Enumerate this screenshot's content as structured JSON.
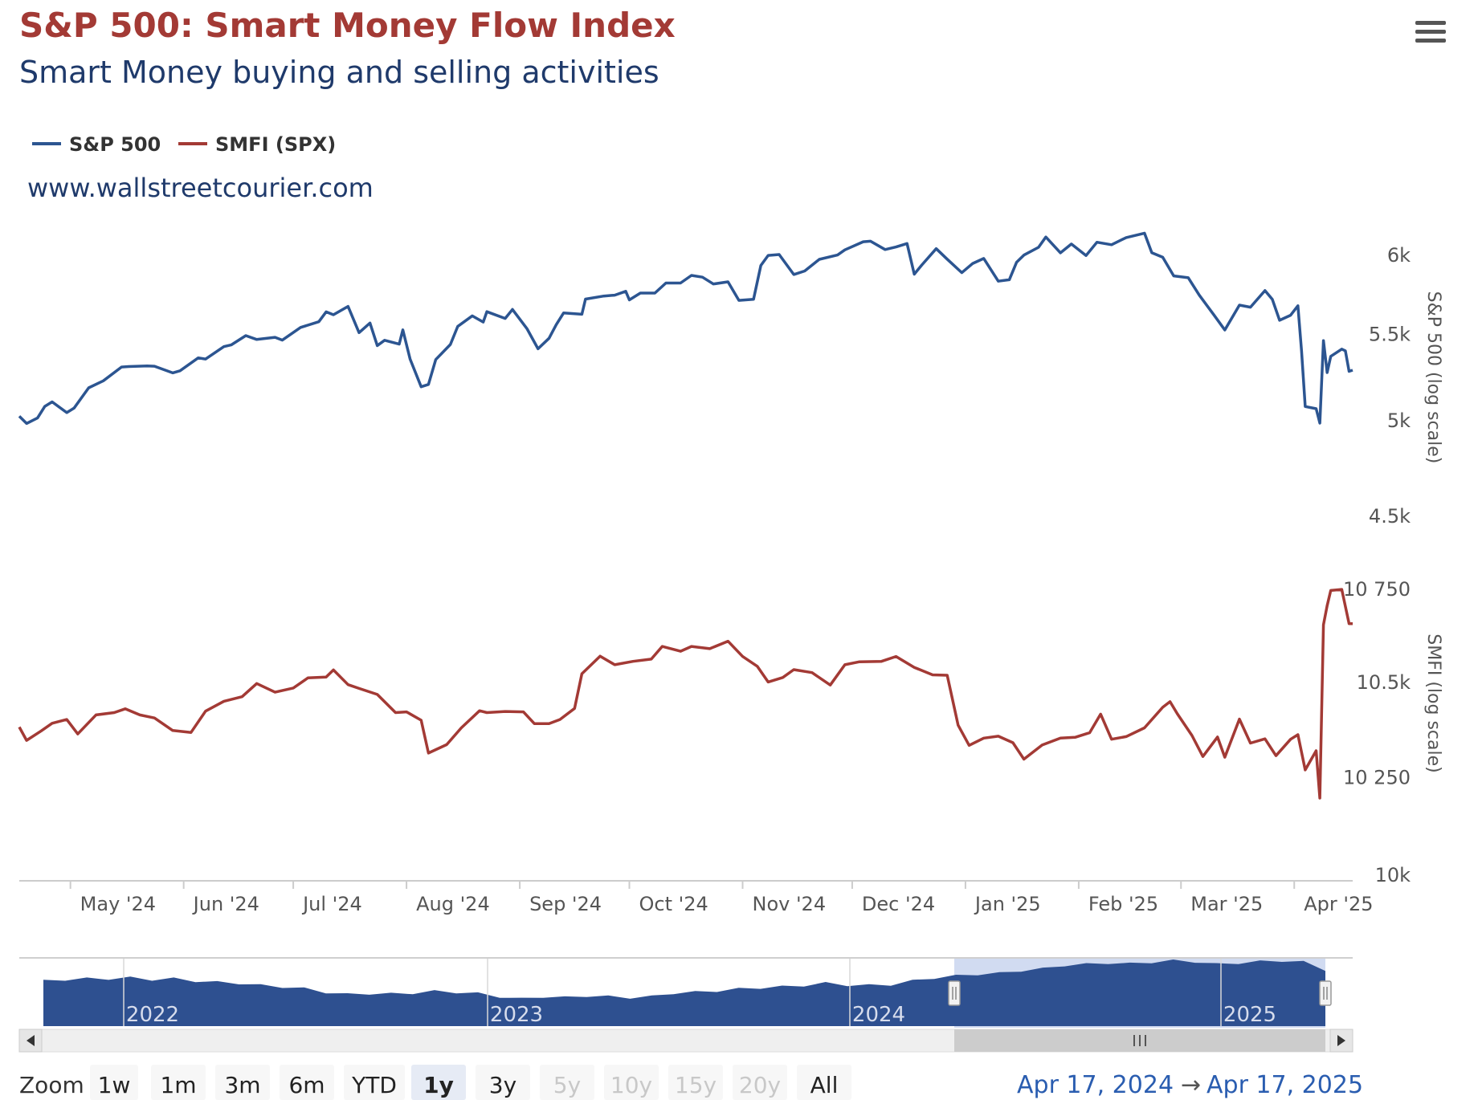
{
  "chart_data": {
    "type": "line",
    "title": "S&P 500: Smart Money Flow Index",
    "subtitle": "Smart Money buying and selling activities",
    "watermark": "www.wallstreetcourier.com",
    "legend_position": "top-left",
    "grid": false,
    "x_range": [
      "2024-04-17",
      "2025-04-17"
    ],
    "x_ticks": [
      "May '24",
      "Jun '24",
      "Jul '24",
      "Aug '24",
      "Sep '24",
      "Oct '24",
      "Nov '24",
      "Dec '24",
      "Jan '25",
      "Feb '25",
      "Mar '25",
      "Apr '25"
    ],
    "colors": {
      "sp500": "#2c5591",
      "smfi": "#a33a35",
      "navigator": "#2e5090",
      "title": "#a33a35",
      "subtitle": "#1f3a6b"
    },
    "axes": [
      {
        "id": "sp500",
        "title": "S&P 500 (log scale)",
        "scale": "log",
        "range": [
          4420,
          6190
        ],
        "ticks": [
          "6k",
          "5.5k",
          "5k",
          "4.5k"
        ],
        "tick_values": [
          6000,
          5500,
          5000,
          4500
        ]
      },
      {
        "id": "smfi",
        "title": "SMFI (log scale)",
        "scale": "log",
        "range": [
          9990,
          10770
        ],
        "ticks": [
          "10 750",
          "10.5k",
          "10 250",
          "10k"
        ],
        "tick_values": [
          10750,
          10500,
          10250,
          10000
        ]
      }
    ],
    "series": [
      {
        "name": "S&P 500",
        "axis": "sp500",
        "points": [
          [
            "2024-04-17",
            5020
          ],
          [
            "2024-04-19",
            4980
          ],
          [
            "2024-04-22",
            5010
          ],
          [
            "2024-04-24",
            5075
          ],
          [
            "2024-04-26",
            5100
          ],
          [
            "2024-04-30",
            5040
          ],
          [
            "2024-05-02",
            5065
          ],
          [
            "2024-05-06",
            5180
          ],
          [
            "2024-05-10",
            5220
          ],
          [
            "2024-05-15",
            5300
          ],
          [
            "2024-05-17",
            5303
          ],
          [
            "2024-05-22",
            5307
          ],
          [
            "2024-05-24",
            5305
          ],
          [
            "2024-05-29",
            5266
          ],
          [
            "2024-05-31",
            5278
          ],
          [
            "2024-06-05",
            5354
          ],
          [
            "2024-06-07",
            5347
          ],
          [
            "2024-06-12",
            5421
          ],
          [
            "2024-06-14",
            5431
          ],
          [
            "2024-06-18",
            5487
          ],
          [
            "2024-06-21",
            5464
          ],
          [
            "2024-06-26",
            5477
          ],
          [
            "2024-06-28",
            5460
          ],
          [
            "2024-07-03",
            5537
          ],
          [
            "2024-07-08",
            5572
          ],
          [
            "2024-07-10",
            5633
          ],
          [
            "2024-07-12",
            5615
          ],
          [
            "2024-07-16",
            5667
          ],
          [
            "2024-07-19",
            5505
          ],
          [
            "2024-07-22",
            5564
          ],
          [
            "2024-07-24",
            5427
          ],
          [
            "2024-07-26",
            5459
          ],
          [
            "2024-07-30",
            5436
          ],
          [
            "2024-07-31",
            5522
          ],
          [
            "2024-08-02",
            5346
          ],
          [
            "2024-08-05",
            5186
          ],
          [
            "2024-08-07",
            5199
          ],
          [
            "2024-08-09",
            5344
          ],
          [
            "2024-08-13",
            5434
          ],
          [
            "2024-08-15",
            5543
          ],
          [
            "2024-08-19",
            5608
          ],
          [
            "2024-08-22",
            5570
          ],
          [
            "2024-08-23",
            5634
          ],
          [
            "2024-08-28",
            5592
          ],
          [
            "2024-08-30",
            5648
          ],
          [
            "2024-09-03",
            5528
          ],
          [
            "2024-09-06",
            5408
          ],
          [
            "2024-09-09",
            5471
          ],
          [
            "2024-09-11",
            5554
          ],
          [
            "2024-09-13",
            5626
          ],
          [
            "2024-09-18",
            5618
          ],
          [
            "2024-09-19",
            5713
          ],
          [
            "2024-09-24",
            5732
          ],
          [
            "2024-09-27",
            5738
          ],
          [
            "2024-09-30",
            5762
          ],
          [
            "2024-10-01",
            5708
          ],
          [
            "2024-10-04",
            5751
          ],
          [
            "2024-10-08",
            5751
          ],
          [
            "2024-10-11",
            5815
          ],
          [
            "2024-10-15",
            5815
          ],
          [
            "2024-10-18",
            5864
          ],
          [
            "2024-10-21",
            5853
          ],
          [
            "2024-10-24",
            5809
          ],
          [
            "2024-10-28",
            5823
          ],
          [
            "2024-10-31",
            5705
          ],
          [
            "2024-11-04",
            5712
          ],
          [
            "2024-11-06",
            5929
          ],
          [
            "2024-11-08",
            5995
          ],
          [
            "2024-11-11",
            6001
          ],
          [
            "2024-11-15",
            5870
          ],
          [
            "2024-11-18",
            5893
          ],
          [
            "2024-11-22",
            5969
          ],
          [
            "2024-11-27",
            5998
          ],
          [
            "2024-11-29",
            6032
          ],
          [
            "2024-12-04",
            6086
          ],
          [
            "2024-12-06",
            6090
          ],
          [
            "2024-12-10",
            6034
          ],
          [
            "2024-12-13",
            6051
          ],
          [
            "2024-12-16",
            6074
          ],
          [
            "2024-12-18",
            5872
          ],
          [
            "2024-12-20",
            5930
          ],
          [
            "2024-12-24",
            6040
          ],
          [
            "2024-12-27",
            5970
          ],
          [
            "2024-12-31",
            5882
          ],
          [
            "2025-01-03",
            5942
          ],
          [
            "2025-01-06",
            5975
          ],
          [
            "2025-01-10",
            5827
          ],
          [
            "2025-01-13",
            5836
          ],
          [
            "2025-01-15",
            5950
          ],
          [
            "2025-01-17",
            5997
          ],
          [
            "2025-01-21",
            6049
          ],
          [
            "2025-01-23",
            6118
          ],
          [
            "2025-01-27",
            6012
          ],
          [
            "2025-01-30",
            6071
          ],
          [
            "2025-02-03",
            5994
          ],
          [
            "2025-02-06",
            6083
          ],
          [
            "2025-02-10",
            6066
          ],
          [
            "2025-02-14",
            6114
          ],
          [
            "2025-02-19",
            6144
          ],
          [
            "2025-02-21",
            6013
          ],
          [
            "2025-02-24",
            5983
          ],
          [
            "2025-02-27",
            5861
          ],
          [
            "2025-03-03",
            5849
          ],
          [
            "2025-03-06",
            5738
          ],
          [
            "2025-03-10",
            5614
          ],
          [
            "2025-03-13",
            5521
          ],
          [
            "2025-03-17",
            5675
          ],
          [
            "2025-03-20",
            5662
          ],
          [
            "2025-03-24",
            5767
          ],
          [
            "2025-03-26",
            5712
          ],
          [
            "2025-03-28",
            5581
          ],
          [
            "2025-03-31",
            5612
          ],
          [
            "2025-04-02",
            5671
          ],
          [
            "2025-04-03",
            5397
          ],
          [
            "2025-04-04",
            5074
          ],
          [
            "2025-04-07",
            5062
          ],
          [
            "2025-04-08",
            4982
          ],
          [
            "2025-04-09",
            5457
          ],
          [
            "2025-04-10",
            5268
          ],
          [
            "2025-04-11",
            5363
          ],
          [
            "2025-04-14",
            5406
          ],
          [
            "2025-04-15",
            5396
          ],
          [
            "2025-04-16",
            5275
          ],
          [
            "2025-04-17",
            5282
          ]
        ]
      },
      {
        "name": "SMFI (SPX)",
        "axis": "smfi",
        "points": [
          [
            "2024-04-17",
            10380
          ],
          [
            "2024-04-19",
            10345
          ],
          [
            "2024-04-23",
            10370
          ],
          [
            "2024-04-26",
            10390
          ],
          [
            "2024-04-30",
            10400
          ],
          [
            "2024-05-03",
            10362
          ],
          [
            "2024-05-08",
            10412
          ],
          [
            "2024-05-13",
            10418
          ],
          [
            "2024-05-16",
            10428
          ],
          [
            "2024-05-20",
            10412
          ],
          [
            "2024-05-24",
            10404
          ],
          [
            "2024-05-29",
            10371
          ],
          [
            "2024-06-03",
            10366
          ],
          [
            "2024-06-07",
            10422
          ],
          [
            "2024-06-12",
            10448
          ],
          [
            "2024-06-17",
            10460
          ],
          [
            "2024-06-21",
            10495
          ],
          [
            "2024-06-26",
            10472
          ],
          [
            "2024-07-01",
            10483
          ],
          [
            "2024-07-05",
            10510
          ],
          [
            "2024-07-10",
            10512
          ],
          [
            "2024-07-12",
            10531
          ],
          [
            "2024-07-16",
            10492
          ],
          [
            "2024-07-19",
            10482
          ],
          [
            "2024-07-24",
            10466
          ],
          [
            "2024-07-29",
            10418
          ],
          [
            "2024-08-01",
            10420
          ],
          [
            "2024-08-05",
            10398
          ],
          [
            "2024-08-07",
            10312
          ],
          [
            "2024-08-12",
            10334
          ],
          [
            "2024-08-16",
            10378
          ],
          [
            "2024-08-21",
            10423
          ],
          [
            "2024-08-23",
            10418
          ],
          [
            "2024-08-28",
            10421
          ],
          [
            "2024-09-02",
            10420
          ],
          [
            "2024-09-05",
            10389
          ],
          [
            "2024-09-09",
            10389
          ],
          [
            "2024-09-12",
            10400
          ],
          [
            "2024-09-16",
            10429
          ],
          [
            "2024-09-18",
            10521
          ],
          [
            "2024-09-23",
            10568
          ],
          [
            "2024-09-27",
            10545
          ],
          [
            "2024-10-02",
            10554
          ],
          [
            "2024-10-07",
            10560
          ],
          [
            "2024-10-10",
            10594
          ],
          [
            "2024-10-15",
            10581
          ],
          [
            "2024-10-18",
            10594
          ],
          [
            "2024-10-23",
            10588
          ],
          [
            "2024-10-28",
            10608
          ],
          [
            "2024-11-01",
            10567
          ],
          [
            "2024-11-05",
            10541
          ],
          [
            "2024-11-08",
            10499
          ],
          [
            "2024-11-12",
            10511
          ],
          [
            "2024-11-15",
            10532
          ],
          [
            "2024-11-20",
            10524
          ],
          [
            "2024-11-25",
            10491
          ],
          [
            "2024-11-29",
            10545
          ],
          [
            "2024-12-03",
            10553
          ],
          [
            "2024-12-09",
            10554
          ],
          [
            "2024-12-13",
            10567
          ],
          [
            "2024-12-18",
            10538
          ],
          [
            "2024-12-23",
            10518
          ],
          [
            "2024-12-27",
            10517
          ],
          [
            "2024-12-30",
            10385
          ],
          [
            "2025-01-02",
            10332
          ],
          [
            "2025-01-06",
            10351
          ],
          [
            "2025-01-10",
            10356
          ],
          [
            "2025-01-14",
            10339
          ],
          [
            "2025-01-17",
            10296
          ],
          [
            "2025-01-22",
            10333
          ],
          [
            "2025-01-27",
            10351
          ],
          [
            "2025-01-31",
            10353
          ],
          [
            "2025-02-04",
            10365
          ],
          [
            "2025-02-07",
            10414
          ],
          [
            "2025-02-10",
            10348
          ],
          [
            "2025-02-14",
            10355
          ],
          [
            "2025-02-19",
            10378
          ],
          [
            "2025-02-24",
            10432
          ],
          [
            "2025-02-26",
            10447
          ],
          [
            "2025-02-28",
            10415
          ],
          [
            "2025-03-04",
            10358
          ],
          [
            "2025-03-07",
            10303
          ],
          [
            "2025-03-11",
            10354
          ],
          [
            "2025-03-13",
            10301
          ],
          [
            "2025-03-17",
            10401
          ],
          [
            "2025-03-20",
            10338
          ],
          [
            "2025-03-24",
            10349
          ],
          [
            "2025-03-27",
            10305
          ],
          [
            "2025-03-31",
            10348
          ],
          [
            "2025-04-02",
            10360
          ],
          [
            "2025-04-04",
            10268
          ],
          [
            "2025-04-07",
            10318
          ],
          [
            "2025-04-08",
            10195
          ],
          [
            "2025-04-09",
            10652
          ],
          [
            "2025-04-10",
            10704
          ],
          [
            "2025-04-11",
            10745
          ],
          [
            "2025-04-14",
            10748
          ],
          [
            "2025-04-16",
            10655
          ],
          [
            "2025-04-17",
            10655
          ]
        ]
      }
    ],
    "navigator": {
      "labels": [
        "2022",
        "2023",
        "2024",
        "2025"
      ],
      "selected_range": [
        "2024-04-17",
        "2025-04-17"
      ],
      "profile": [
        0.55,
        0.58,
        0.6,
        0.6,
        0.62,
        0.58,
        0.6,
        0.55,
        0.52,
        0.5,
        0.45,
        0.42,
        0.38,
        0.3,
        0.25,
        0.27,
        0.26,
        0.28,
        0.32,
        0.3,
        0.27,
        0.2,
        0.15,
        0.2,
        0.18,
        0.22,
        0.2,
        0.18,
        0.2,
        0.28,
        0.3,
        0.33,
        0.37,
        0.4,
        0.42,
        0.45,
        0.5,
        0.46,
        0.45,
        0.47,
        0.55,
        0.62,
        0.66,
        0.7,
        0.72,
        0.78,
        0.82,
        0.9,
        0.92,
        0.95,
        0.93,
        0.97,
        1.0,
        0.98,
        0.92,
        0.95,
        0.98,
        1.0,
        0.97,
        0.8
      ]
    }
  },
  "range_selector": {
    "zoom_label": "Zoom",
    "buttons": [
      {
        "label": "1w",
        "state": "normal"
      },
      {
        "label": "1m",
        "state": "normal"
      },
      {
        "label": "3m",
        "state": "normal"
      },
      {
        "label": "6m",
        "state": "normal"
      },
      {
        "label": "YTD",
        "state": "normal"
      },
      {
        "label": "1y",
        "state": "active"
      },
      {
        "label": "3y",
        "state": "normal"
      },
      {
        "label": "5y",
        "state": "disabled"
      },
      {
        "label": "10y",
        "state": "disabled"
      },
      {
        "label": "15y",
        "state": "disabled"
      },
      {
        "label": "20y",
        "state": "disabled"
      },
      {
        "label": "All",
        "state": "normal"
      }
    ],
    "date_from": "Apr 17, 2024",
    "date_arrow": "→",
    "date_to": "Apr 17, 2025"
  },
  "menu_icon": "hamburger-menu-icon"
}
